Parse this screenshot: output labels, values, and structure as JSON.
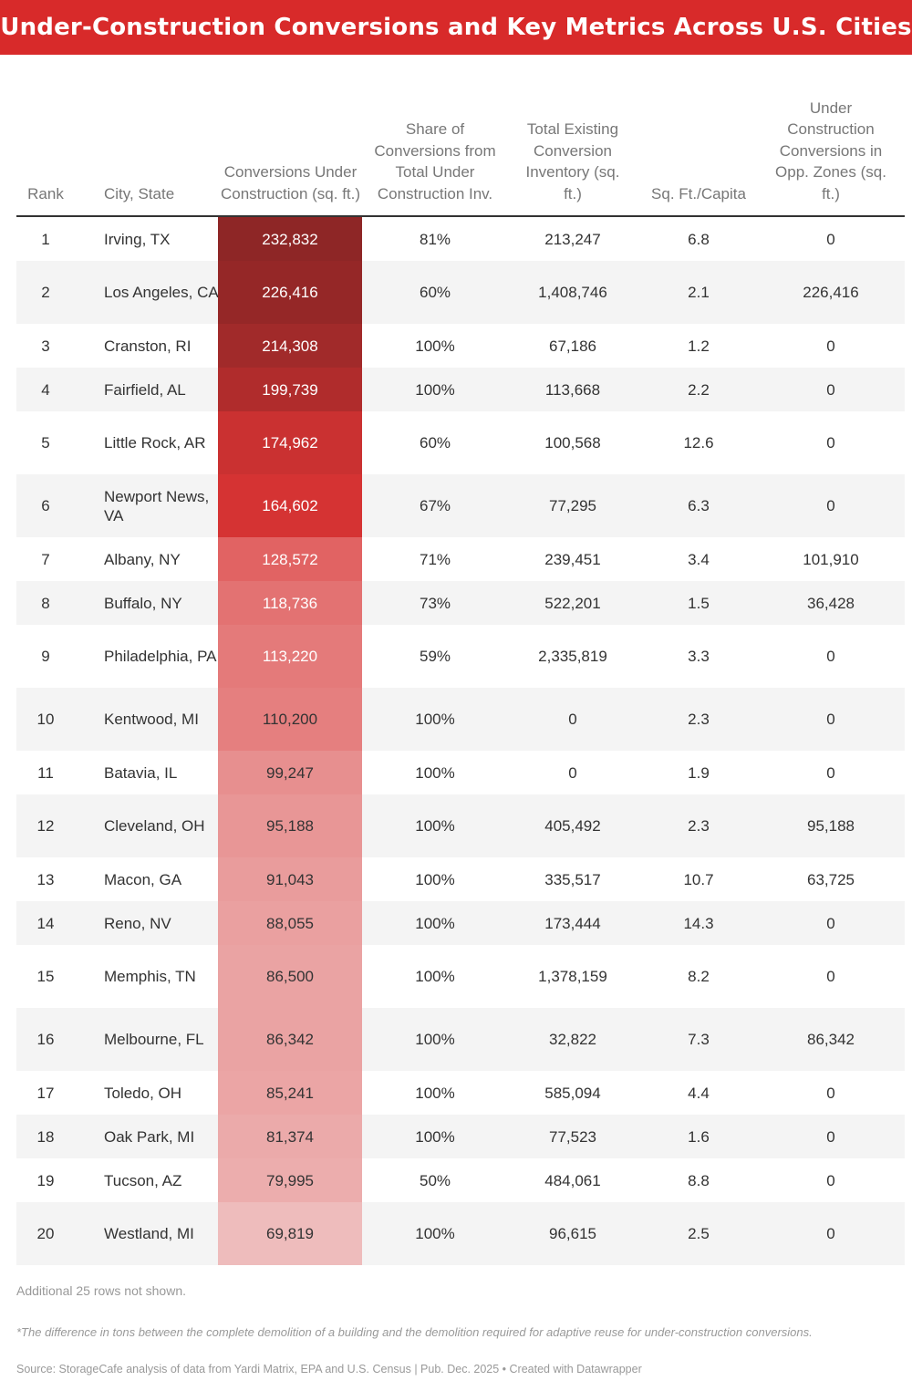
{
  "title": "Under-Construction Conversions and Key Metrics Across U.S. Cities",
  "chart_data": {
    "type": "table",
    "columns": [
      {
        "key": "rank",
        "label": "Rank"
      },
      {
        "key": "city",
        "label": "City, State"
      },
      {
        "key": "conversions",
        "label": "Conversions Under Construction (sq. ft.)"
      },
      {
        "key": "share",
        "label": "Share of Conversions from Total Under Construction Inv."
      },
      {
        "key": "inventory",
        "label": "Total Existing Conversion Inventory (sq. ft.)"
      },
      {
        "key": "per_capita",
        "label": "Sq. Ft./Capita"
      },
      {
        "key": "opp_zones",
        "label": "Under Construction Conversions in Opp. Zones (sq. ft.)"
      }
    ],
    "rows": [
      {
        "rank": "1",
        "city": "Irving, TX",
        "conversions": "232,832",
        "conversions_value": 232832,
        "share": "81%",
        "inventory": "213,247",
        "per_capita": "6.8",
        "opp_zones": "0"
      },
      {
        "rank": "2",
        "city": "Los Angeles, CA",
        "conversions": "226,416",
        "conversions_value": 226416,
        "share": "60%",
        "inventory": "1,408,746",
        "per_capita": "2.1",
        "opp_zones": "226,416"
      },
      {
        "rank": "3",
        "city": "Cranston, RI",
        "conversions": "214,308",
        "conversions_value": 214308,
        "share": "100%",
        "inventory": "67,186",
        "per_capita": "1.2",
        "opp_zones": "0"
      },
      {
        "rank": "4",
        "city": "Fairfield, AL",
        "conversions": "199,739",
        "conversions_value": 199739,
        "share": "100%",
        "inventory": "113,668",
        "per_capita": "2.2",
        "opp_zones": "0"
      },
      {
        "rank": "5",
        "city": "Little Rock, AR",
        "conversions": "174,962",
        "conversions_value": 174962,
        "share": "60%",
        "inventory": "100,568",
        "per_capita": "12.6",
        "opp_zones": "0"
      },
      {
        "rank": "6",
        "city": "Newport News, VA",
        "conversions": "164,602",
        "conversions_value": 164602,
        "share": "67%",
        "inventory": "77,295",
        "per_capita": "6.3",
        "opp_zones": "0"
      },
      {
        "rank": "7",
        "city": "Albany, NY",
        "conversions": "128,572",
        "conversions_value": 128572,
        "share": "71%",
        "inventory": "239,451",
        "per_capita": "3.4",
        "opp_zones": "101,910"
      },
      {
        "rank": "8",
        "city": "Buffalo, NY",
        "conversions": "118,736",
        "conversions_value": 118736,
        "share": "73%",
        "inventory": "522,201",
        "per_capita": "1.5",
        "opp_zones": "36,428"
      },
      {
        "rank": "9",
        "city": "Philadelphia, PA",
        "conversions": "113,220",
        "conversions_value": 113220,
        "share": "59%",
        "inventory": "2,335,819",
        "per_capita": "3.3",
        "opp_zones": "0"
      },
      {
        "rank": "10",
        "city": "Kentwood, MI",
        "conversions": "110,200",
        "conversions_value": 110200,
        "share": "100%",
        "inventory": "0",
        "per_capita": "2.3",
        "opp_zones": "0"
      },
      {
        "rank": "11",
        "city": "Batavia, IL",
        "conversions": "99,247",
        "conversions_value": 99247,
        "share": "100%",
        "inventory": "0",
        "per_capita": "1.9",
        "opp_zones": "0"
      },
      {
        "rank": "12",
        "city": "Cleveland, OH",
        "conversions": "95,188",
        "conversions_value": 95188,
        "share": "100%",
        "inventory": "405,492",
        "per_capita": "2.3",
        "opp_zones": "95,188"
      },
      {
        "rank": "13",
        "city": "Macon, GA",
        "conversions": "91,043",
        "conversions_value": 91043,
        "share": "100%",
        "inventory": "335,517",
        "per_capita": "10.7",
        "opp_zones": "63,725"
      },
      {
        "rank": "14",
        "city": "Reno, NV",
        "conversions": "88,055",
        "conversions_value": 88055,
        "share": "100%",
        "inventory": "173,444",
        "per_capita": "14.3",
        "opp_zones": "0"
      },
      {
        "rank": "15",
        "city": "Memphis, TN",
        "conversions": "86,500",
        "conversions_value": 86500,
        "share": "100%",
        "inventory": "1,378,159",
        "per_capita": "8.2",
        "opp_zones": "0"
      },
      {
        "rank": "16",
        "city": "Melbourne, FL",
        "conversions": "86,342",
        "conversions_value": 86342,
        "share": "100%",
        "inventory": "32,822",
        "per_capita": "7.3",
        "opp_zones": "86,342"
      },
      {
        "rank": "17",
        "city": "Toledo, OH",
        "conversions": "85,241",
        "conversions_value": 85241,
        "share": "100%",
        "inventory": "585,094",
        "per_capita": "4.4",
        "opp_zones": "0"
      },
      {
        "rank": "18",
        "city": "Oak Park, MI",
        "conversions": "81,374",
        "conversions_value": 81374,
        "share": "100%",
        "inventory": "77,523",
        "per_capita": "1.6",
        "opp_zones": "0"
      },
      {
        "rank": "19",
        "city": "Tucson, AZ",
        "conversions": "79,995",
        "conversions_value": 79995,
        "share": "50%",
        "inventory": "484,061",
        "per_capita": "8.8",
        "opp_zones": "0"
      },
      {
        "rank": "20",
        "city": "Westland, MI",
        "conversions": "69,819",
        "conversions_value": 69819,
        "share": "100%",
        "inventory": "96,615",
        "per_capita": "2.5",
        "opp_zones": "0"
      }
    ],
    "heatmap_column": "conversions",
    "heatmap_colors": {
      "high": "#8e2626",
      "low": "#eebcbc"
    }
  },
  "notes": {
    "rows_hidden": "Additional 25 rows not shown.",
    "footnote": "*The difference in tons between the complete demolition of a building and the demolition required for adaptive reuse for under-construction conversions.",
    "source": "Source: StorageCafe analysis of data from Yardi Matrix, EPA and U.S. Census | Pub. Dec. 2025 • Created with Datawrapper"
  }
}
